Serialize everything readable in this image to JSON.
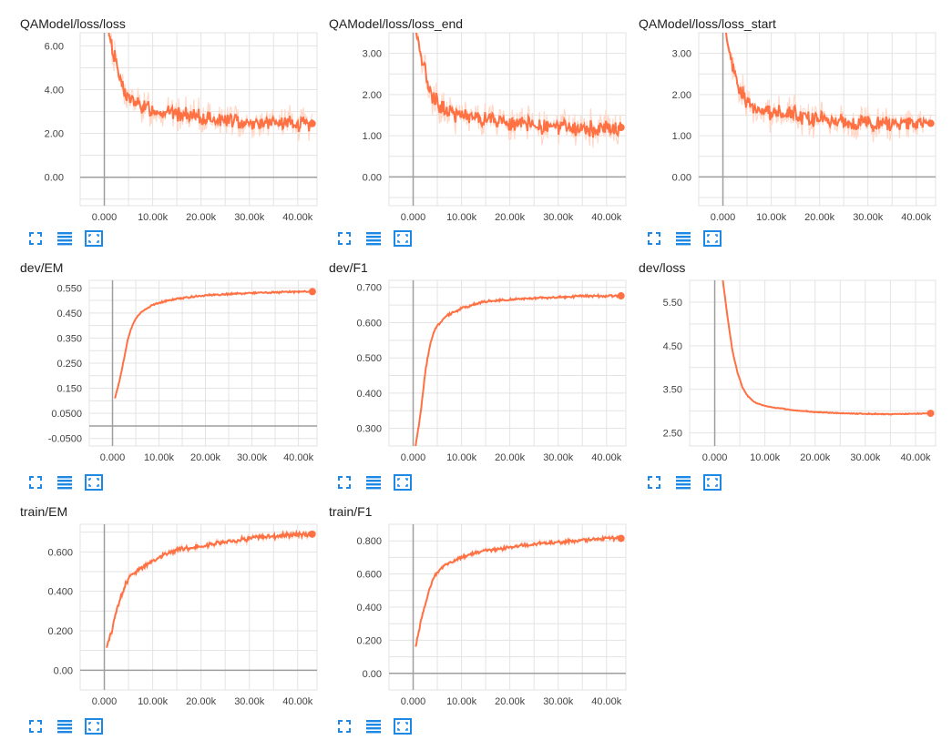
{
  "colors": {
    "line": "#ff7043",
    "line_faint": "#ffd8c8",
    "grid": "#e3e3e3",
    "axis": "#9e9e9e",
    "icon": "#1e88e5"
  },
  "toolbar": {
    "icons": [
      "fullscreen-icon",
      "list-icon",
      "fit-domain-icon"
    ]
  },
  "chart_data": [
    {
      "title": "QAModel/loss/loss",
      "type": "line",
      "xlim": [
        -5000,
        44000
      ],
      "ylim": [
        -1.3,
        6.6
      ],
      "x_ticks": [
        0,
        10000,
        20000,
        30000,
        40000
      ],
      "x_tick_labels": [
        "0.000",
        "10.00k",
        "20.00k",
        "30.00k",
        "40.00k"
      ],
      "y_ticks": [
        0,
        2,
        4,
        6
      ],
      "y_tick_labels": [
        "0.00",
        "2.00",
        "4.00",
        "6.00"
      ],
      "noise": 0.35,
      "series": [
        {
          "x": [
            0,
            1000,
            2000,
            3000,
            4000,
            5000,
            7000,
            10000,
            15000,
            20000,
            25000,
            30000,
            35000,
            40000,
            43000
          ],
          "values": [
            8.0,
            6.6,
            5.6,
            4.7,
            4.0,
            3.6,
            3.3,
            3.1,
            2.9,
            2.7,
            2.6,
            2.5,
            2.45,
            2.4,
            2.45
          ]
        }
      ]
    },
    {
      "title": "QAModel/loss/loss_end",
      "type": "line",
      "xlim": [
        -5000,
        44000
      ],
      "ylim": [
        -0.7,
        3.5
      ],
      "x_ticks": [
        0,
        10000,
        20000,
        30000,
        40000
      ],
      "x_tick_labels": [
        "0.000",
        "10.00k",
        "20.00k",
        "30.00k",
        "40.00k"
      ],
      "y_ticks": [
        0,
        1,
        2,
        3
      ],
      "y_tick_labels": [
        "0.00",
        "1.00",
        "2.00",
        "3.00"
      ],
      "noise": 0.2,
      "series": [
        {
          "x": [
            0,
            1000,
            2000,
            3000,
            4000,
            5000,
            7000,
            10000,
            15000,
            20000,
            25000,
            30000,
            35000,
            40000,
            43000
          ],
          "values": [
            4.0,
            3.3,
            2.8,
            2.3,
            2.0,
            1.8,
            1.6,
            1.5,
            1.4,
            1.3,
            1.25,
            1.2,
            1.15,
            1.15,
            1.2
          ]
        }
      ]
    },
    {
      "title": "QAModel/loss/loss_start",
      "type": "line",
      "xlim": [
        -5000,
        44000
      ],
      "ylim": [
        -0.7,
        3.5
      ],
      "x_ticks": [
        0,
        10000,
        20000,
        30000,
        40000
      ],
      "x_tick_labels": [
        "0.000",
        "10.00k",
        "20.00k",
        "30.00k",
        "40.00k"
      ],
      "y_ticks": [
        0,
        1,
        2,
        3
      ],
      "y_tick_labels": [
        "0.00",
        "1.00",
        "2.00",
        "3.00"
      ],
      "noise": 0.2,
      "series": [
        {
          "x": [
            0,
            1000,
            2000,
            3000,
            4000,
            5000,
            7000,
            10000,
            15000,
            20000,
            25000,
            30000,
            35000,
            40000,
            43000
          ],
          "values": [
            4.0,
            3.3,
            2.7,
            2.3,
            2.0,
            1.8,
            1.7,
            1.6,
            1.5,
            1.4,
            1.35,
            1.3,
            1.3,
            1.3,
            1.3
          ]
        }
      ]
    },
    {
      "title": "dev/EM",
      "type": "line",
      "xlim": [
        -5000,
        44000
      ],
      "ylim": [
        -0.08,
        0.58
      ],
      "x_ticks": [
        0,
        10000,
        20000,
        30000,
        40000
      ],
      "x_tick_labels": [
        "0.000",
        "10.00k",
        "20.00k",
        "30.00k",
        "40.00k"
      ],
      "y_ticks": [
        -0.05,
        0.05,
        0.15,
        0.25,
        0.35,
        0.45,
        0.55
      ],
      "y_tick_labels": [
        "-0.0500",
        "0.0500",
        "0.150",
        "0.250",
        "0.350",
        "0.450",
        "0.550"
      ],
      "baseline": 0,
      "noise": 0.003,
      "series": [
        {
          "x": [
            500,
            1500,
            2500,
            3500,
            4500,
            5500,
            7000,
            8500,
            10000,
            12000,
            15000,
            20000,
            25000,
            30000,
            35000,
            40000,
            43000
          ],
          "values": [
            0.11,
            0.18,
            0.27,
            0.36,
            0.41,
            0.44,
            0.465,
            0.48,
            0.49,
            0.5,
            0.51,
            0.52,
            0.525,
            0.53,
            0.532,
            0.535,
            0.535
          ]
        }
      ]
    },
    {
      "title": "dev/F1",
      "type": "line",
      "xlim": [
        -5000,
        44000
      ],
      "ylim": [
        0.25,
        0.72
      ],
      "x_ticks": [
        0,
        10000,
        20000,
        30000,
        40000
      ],
      "x_tick_labels": [
        "0.000",
        "10.00k",
        "20.00k",
        "30.00k",
        "40.00k"
      ],
      "y_ticks": [
        0.3,
        0.4,
        0.5,
        0.6,
        0.7
      ],
      "y_tick_labels": [
        "0.300",
        "0.400",
        "0.500",
        "0.600",
        "0.700"
      ],
      "noise": 0.003,
      "series": [
        {
          "x": [
            500,
            1500,
            2500,
            3500,
            4500,
            5500,
            7000,
            8500,
            10000,
            12000,
            15000,
            20000,
            25000,
            30000,
            35000,
            40000,
            43000
          ],
          "values": [
            0.25,
            0.34,
            0.46,
            0.54,
            0.58,
            0.6,
            0.62,
            0.63,
            0.64,
            0.65,
            0.66,
            0.665,
            0.67,
            0.672,
            0.675,
            0.676,
            0.676
          ]
        }
      ]
    },
    {
      "title": "dev/loss",
      "type": "line",
      "xlim": [
        -5000,
        44000
      ],
      "ylim": [
        2.2,
        6.0
      ],
      "x_ticks": [
        0,
        10000,
        20000,
        30000,
        40000
      ],
      "x_tick_labels": [
        "0.000",
        "10.00k",
        "20.00k",
        "30.00k",
        "40.00k"
      ],
      "y_ticks": [
        2.5,
        3.5,
        4.5,
        5.5
      ],
      "y_tick_labels": [
        "2.50",
        "3.50",
        "4.50",
        "5.50"
      ],
      "noise": 0.01,
      "series": [
        {
          "x": [
            1500,
            2500,
            3500,
            4500,
            5500,
            6500,
            8000,
            10000,
            12000,
            15000,
            20000,
            25000,
            30000,
            35000,
            40000,
            43000
          ],
          "values": [
            6.1,
            5.2,
            4.4,
            3.9,
            3.55,
            3.35,
            3.2,
            3.12,
            3.08,
            3.03,
            2.98,
            2.95,
            2.94,
            2.93,
            2.94,
            2.95
          ]
        }
      ]
    },
    {
      "title": "train/EM",
      "type": "line",
      "xlim": [
        -5000,
        44000
      ],
      "ylim": [
        -0.1,
        0.74
      ],
      "x_ticks": [
        0,
        10000,
        20000,
        30000,
        40000
      ],
      "x_tick_labels": [
        "0.000",
        "10.00k",
        "20.00k",
        "30.00k",
        "40.00k"
      ],
      "y_ticks": [
        0,
        0.2,
        0.4,
        0.6
      ],
      "y_tick_labels": [
        "0.00",
        "0.200",
        "0.400",
        "0.600"
      ],
      "noise": 0.012,
      "series": [
        {
          "x": [
            500,
            1500,
            2500,
            3500,
            4500,
            5500,
            7000,
            8500,
            10000,
            12000,
            15000,
            20000,
            25000,
            30000,
            35000,
            40000,
            43000
          ],
          "values": [
            0.11,
            0.2,
            0.3,
            0.38,
            0.44,
            0.48,
            0.51,
            0.53,
            0.55,
            0.58,
            0.61,
            0.63,
            0.65,
            0.67,
            0.68,
            0.69,
            0.69
          ]
        }
      ]
    },
    {
      "title": "train/F1",
      "type": "line",
      "xlim": [
        -5000,
        44000
      ],
      "ylim": [
        -0.1,
        0.9
      ],
      "x_ticks": [
        0,
        10000,
        20000,
        30000,
        40000
      ],
      "x_tick_labels": [
        "0.000",
        "10.00k",
        "20.00k",
        "30.00k",
        "40.00k"
      ],
      "y_ticks": [
        0,
        0.2,
        0.4,
        0.6,
        0.8
      ],
      "y_tick_labels": [
        "0.00",
        "0.200",
        "0.400",
        "0.600",
        "0.800"
      ],
      "noise": 0.01,
      "series": [
        {
          "x": [
            500,
            1500,
            2500,
            3500,
            4500,
            5500,
            7000,
            8500,
            10000,
            12000,
            15000,
            20000,
            25000,
            30000,
            35000,
            40000,
            43000
          ],
          "values": [
            0.16,
            0.3,
            0.42,
            0.52,
            0.59,
            0.63,
            0.66,
            0.68,
            0.7,
            0.72,
            0.74,
            0.76,
            0.78,
            0.79,
            0.805,
            0.815,
            0.815
          ]
        }
      ]
    }
  ]
}
